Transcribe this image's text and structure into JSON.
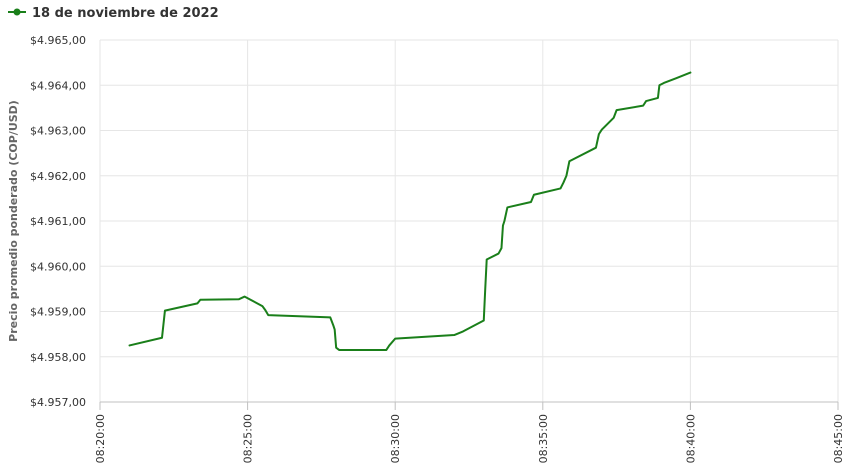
{
  "chart_data": {
    "type": "line",
    "title": "",
    "xlabel": "",
    "ylabel": "Precio promedio ponderado (COP/USD)",
    "legend": {
      "position": "top-left"
    },
    "grid": true,
    "x_ticks": [
      "08:20:00",
      "08:25:00",
      "08:30:00",
      "08:35:00",
      "08:40:00",
      "08:45:00"
    ],
    "y_ticks": [
      "$4.957,00",
      "$4.958,00",
      "$4.959,00",
      "$4.960,00",
      "$4.961,00",
      "$4.962,00",
      "$4.963,00",
      "$4.964,00",
      "$4.965,00"
    ],
    "xlim": [
      "08:20:00",
      "08:45:00"
    ],
    "ylim": [
      4957,
      4965
    ],
    "series": [
      {
        "name": "18 de noviembre de 2022",
        "color": "#1a7f1a",
        "x": [
          "08:21:00",
          "08:22:06",
          "08:22:12",
          "08:23:18",
          "08:23:24",
          "08:24:42",
          "08:24:54",
          "08:25:30",
          "08:25:36",
          "08:25:42",
          "08:27:48",
          "08:27:54",
          "08:27:57",
          "08:28:00",
          "08:28:06",
          "08:29:42",
          "08:29:48",
          "08:30:00",
          "08:32:00",
          "08:32:18",
          "08:33:00",
          "08:33:03",
          "08:33:06",
          "08:33:30",
          "08:33:36",
          "08:33:39",
          "08:33:42",
          "08:33:48",
          "08:34:36",
          "08:34:42",
          "08:35:36",
          "08:35:42",
          "08:35:48",
          "08:35:54",
          "08:36:48",
          "08:36:54",
          "08:37:00",
          "08:37:24",
          "08:37:30",
          "08:38:24",
          "08:38:30",
          "08:38:54",
          "08:38:57",
          "08:39:06",
          "08:39:30",
          "08:40:00"
        ],
        "values": [
          4958.25,
          4958.42,
          4959.02,
          4959.18,
          4959.26,
          4959.27,
          4959.33,
          4959.12,
          4959.03,
          4958.92,
          4958.87,
          4958.7,
          4958.6,
          4958.2,
          4958.15,
          4958.15,
          4958.25,
          4958.4,
          4958.48,
          4958.56,
          4958.8,
          4959.5,
          4960.15,
          4960.28,
          4960.4,
          4960.9,
          4961.0,
          4961.3,
          4961.42,
          4961.58,
          4961.72,
          4961.85,
          4962.0,
          4962.32,
          4962.62,
          4962.92,
          4963.02,
          4963.28,
          4963.45,
          4963.55,
          4963.65,
          4963.72,
          4964.0,
          4964.05,
          4964.15,
          4964.28
        ]
      }
    ]
  }
}
